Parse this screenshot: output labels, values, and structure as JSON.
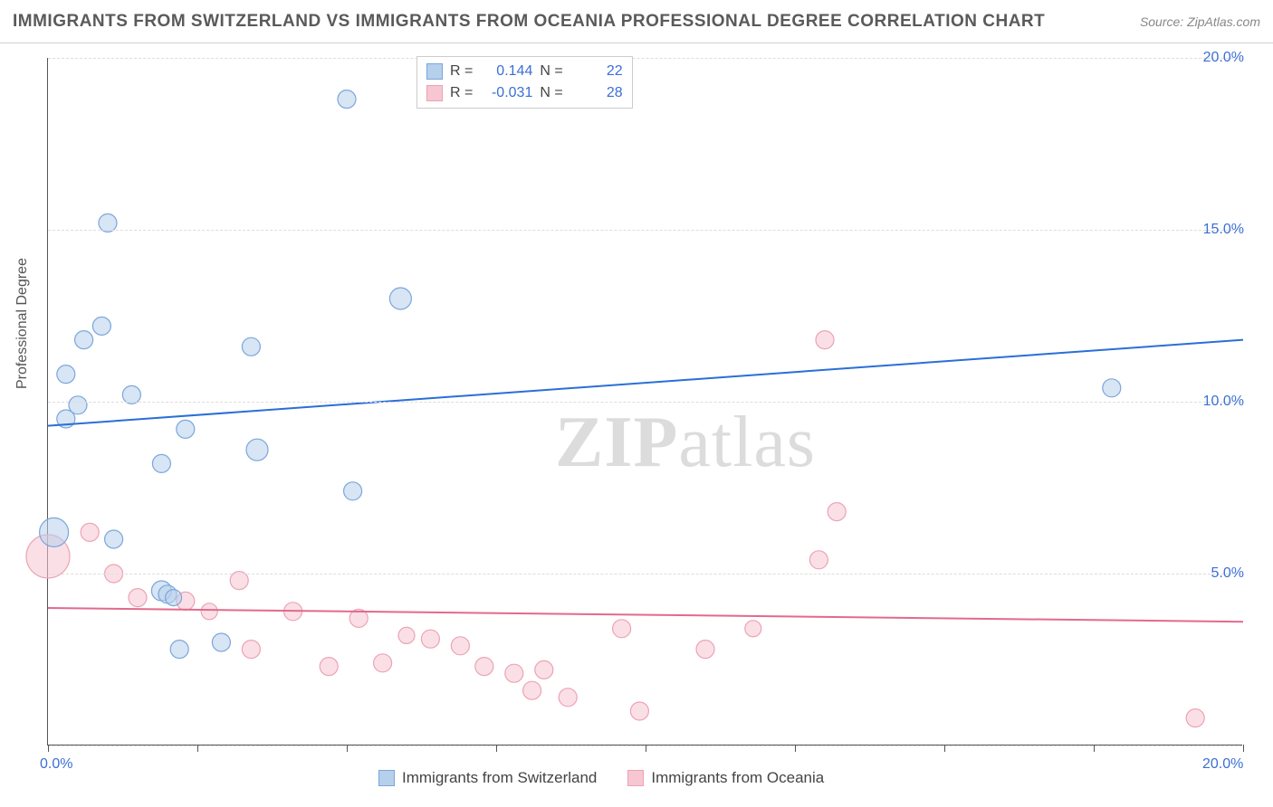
{
  "header": {
    "title": "IMMIGRANTS FROM SWITZERLAND VS IMMIGRANTS FROM OCEANIA PROFESSIONAL DEGREE CORRELATION CHART",
    "source": "Source: ZipAtlas.com"
  },
  "axes": {
    "ylabel": "Professional Degree",
    "xlim": [
      0,
      20
    ],
    "ylim": [
      0,
      20
    ],
    "xtick_positions": [
      0,
      2.5,
      5,
      7.5,
      10,
      12.5,
      15,
      17.5,
      20
    ],
    "xtick_labels_show": {
      "0": "0.0%",
      "20": "20.0%"
    },
    "ytick_positions": [
      5,
      10,
      15,
      20
    ],
    "ytick_labels": {
      "5": "5.0%",
      "10": "10.0%",
      "15": "15.0%",
      "20": "20.0%"
    },
    "grid_positions": [
      0,
      5,
      10,
      15,
      20
    ]
  },
  "colors": {
    "series1_fill": "#b6cfeb",
    "series1_stroke": "#7ba6db",
    "series1_line": "#2a6fd6",
    "series2_fill": "#f6c6d1",
    "series2_stroke": "#eda2b4",
    "series2_line": "#e26a8c",
    "axis_text": "#3b6fd6",
    "grid": "#dddddd",
    "title_text": "#5a5a5a"
  },
  "legend_stats": {
    "series1": {
      "r_label": "R =",
      "r_value": "0.144",
      "n_label": "N =",
      "n_value": "22"
    },
    "series2": {
      "r_label": "R =",
      "r_value": "-0.031",
      "n_label": "N =",
      "n_value": "28"
    }
  },
  "legend_bottom": {
    "series1": "Immigrants from Switzerland",
    "series2": "Immigrants from Oceania"
  },
  "watermark": {
    "part1": "ZIP",
    "part2": "atlas"
  },
  "series1": {
    "name": "Immigrants from Switzerland",
    "type": "scatter",
    "marker_radius": 10,
    "points": [
      {
        "x": 5.0,
        "y": 18.8,
        "r": 10
      },
      {
        "x": 1.0,
        "y": 15.2,
        "r": 10
      },
      {
        "x": 5.9,
        "y": 13.0,
        "r": 12
      },
      {
        "x": 0.9,
        "y": 12.2,
        "r": 10
      },
      {
        "x": 0.6,
        "y": 11.8,
        "r": 10
      },
      {
        "x": 3.4,
        "y": 11.6,
        "r": 10
      },
      {
        "x": 0.3,
        "y": 10.8,
        "r": 10
      },
      {
        "x": 17.8,
        "y": 10.4,
        "r": 10
      },
      {
        "x": 1.4,
        "y": 10.2,
        "r": 10
      },
      {
        "x": 0.5,
        "y": 9.9,
        "r": 10
      },
      {
        "x": 0.3,
        "y": 9.5,
        "r": 10
      },
      {
        "x": 2.3,
        "y": 9.2,
        "r": 10
      },
      {
        "x": 3.5,
        "y": 8.6,
        "r": 12
      },
      {
        "x": 1.9,
        "y": 8.2,
        "r": 10
      },
      {
        "x": 5.1,
        "y": 7.4,
        "r": 10
      },
      {
        "x": 0.1,
        "y": 6.2,
        "r": 16
      },
      {
        "x": 1.1,
        "y": 6.0,
        "r": 10
      },
      {
        "x": 1.9,
        "y": 4.5,
        "r": 11
      },
      {
        "x": 2.0,
        "y": 4.4,
        "r": 10
      },
      {
        "x": 2.9,
        "y": 3.0,
        "r": 10
      },
      {
        "x": 2.2,
        "y": 2.8,
        "r": 10
      },
      {
        "x": 2.1,
        "y": 4.3,
        "r": 9
      }
    ],
    "trend": {
      "y_at_x0": 9.3,
      "y_at_xmax": 11.8
    }
  },
  "series2": {
    "name": "Immigrants from Oceania",
    "type": "scatter",
    "marker_radius": 10,
    "points": [
      {
        "x": 13.0,
        "y": 11.8,
        "r": 10
      },
      {
        "x": 13.2,
        "y": 6.8,
        "r": 10
      },
      {
        "x": 0.7,
        "y": 6.2,
        "r": 10
      },
      {
        "x": 0.0,
        "y": 5.5,
        "r": 24
      },
      {
        "x": 12.9,
        "y": 5.4,
        "r": 10
      },
      {
        "x": 1.1,
        "y": 5.0,
        "r": 10
      },
      {
        "x": 3.2,
        "y": 4.8,
        "r": 10
      },
      {
        "x": 1.5,
        "y": 4.3,
        "r": 10
      },
      {
        "x": 2.3,
        "y": 4.2,
        "r": 10
      },
      {
        "x": 4.1,
        "y": 3.9,
        "r": 10
      },
      {
        "x": 5.2,
        "y": 3.7,
        "r": 10
      },
      {
        "x": 9.6,
        "y": 3.4,
        "r": 10
      },
      {
        "x": 6.4,
        "y": 3.1,
        "r": 10
      },
      {
        "x": 6.9,
        "y": 2.9,
        "r": 10
      },
      {
        "x": 3.4,
        "y": 2.8,
        "r": 10
      },
      {
        "x": 11.0,
        "y": 2.8,
        "r": 10
      },
      {
        "x": 5.6,
        "y": 2.4,
        "r": 10
      },
      {
        "x": 4.7,
        "y": 2.3,
        "r": 10
      },
      {
        "x": 7.3,
        "y": 2.3,
        "r": 10
      },
      {
        "x": 8.3,
        "y": 2.2,
        "r": 10
      },
      {
        "x": 7.8,
        "y": 2.1,
        "r": 10
      },
      {
        "x": 8.1,
        "y": 1.6,
        "r": 10
      },
      {
        "x": 8.7,
        "y": 1.4,
        "r": 10
      },
      {
        "x": 9.9,
        "y": 1.0,
        "r": 10
      },
      {
        "x": 19.2,
        "y": 0.8,
        "r": 10
      },
      {
        "x": 2.7,
        "y": 3.9,
        "r": 9
      },
      {
        "x": 11.8,
        "y": 3.4,
        "r": 9
      },
      {
        "x": 6.0,
        "y": 3.2,
        "r": 9
      }
    ],
    "trend": {
      "y_at_x0": 4.0,
      "y_at_xmax": 3.6
    }
  }
}
